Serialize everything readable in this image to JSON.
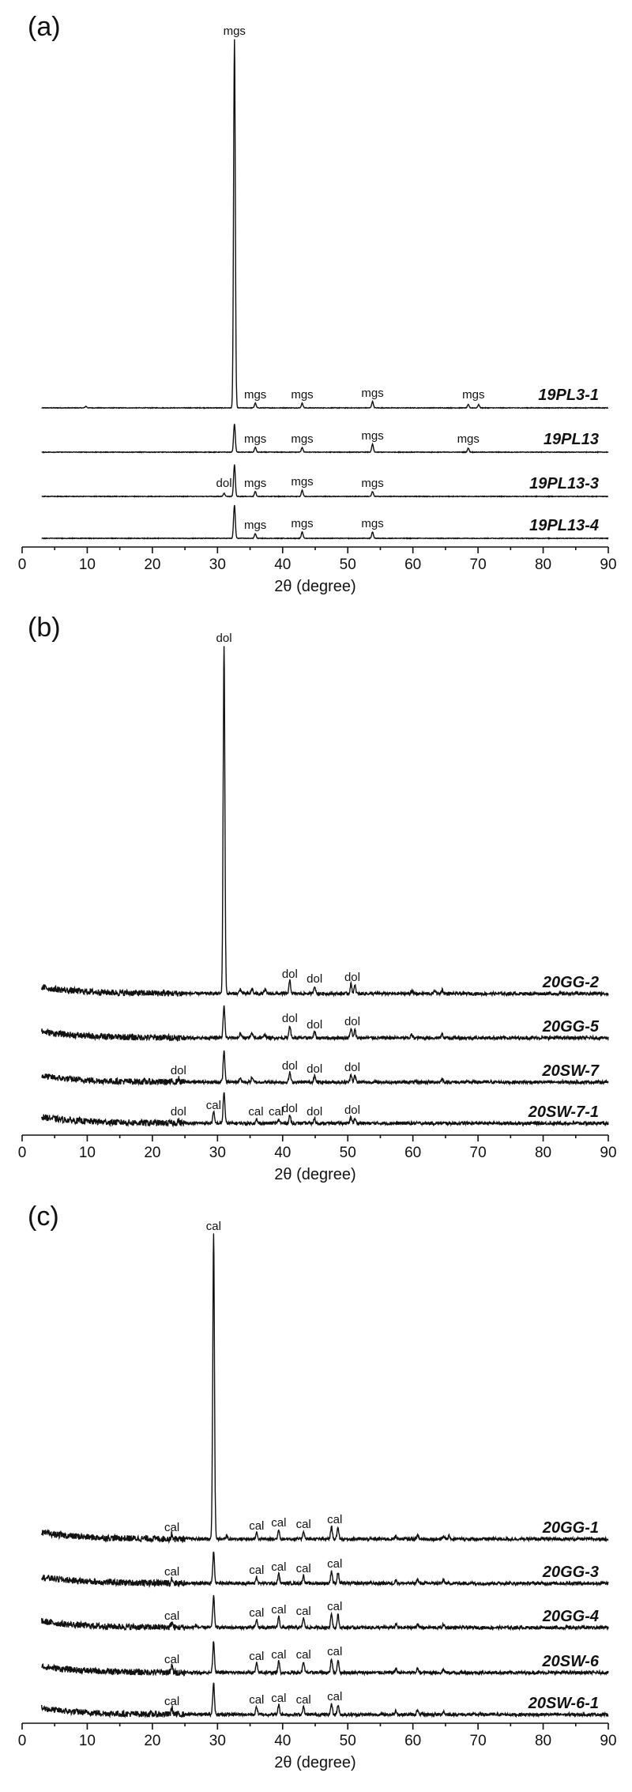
{
  "chart_data": [
    {
      "type": "line",
      "panel": "(a)",
      "xlabel": "2θ (degree)",
      "xlim": [
        0,
        90
      ],
      "xticks": [
        0,
        10,
        20,
        30,
        40,
        50,
        60,
        70,
        80,
        90
      ],
      "main_peak": {
        "x": 32.6,
        "label": "mgs"
      },
      "series": [
        {
          "name": "19PL3-1",
          "peaks": [
            [
              9.8,
              2
            ],
            [
              32.6,
              470
            ],
            [
              35.8,
              6
            ],
            [
              43.0,
              6
            ],
            [
              53.8,
              8
            ],
            [
              68.5,
              4
            ],
            [
              70.1,
              4
            ]
          ],
          "labels": [
            {
              "x": 35.8,
              "text": "mgs"
            },
            {
              "x": 43.0,
              "text": "mgs"
            },
            {
              "x": 53.8,
              "text": "mgs"
            },
            {
              "x": 69.3,
              "text": "mgs"
            }
          ]
        },
        {
          "name": "19PL13",
          "peaks": [
            [
              32.6,
              36
            ],
            [
              35.8,
              6
            ],
            [
              43.0,
              6
            ],
            [
              53.8,
              10
            ],
            [
              68.5,
              5
            ]
          ],
          "labels": [
            {
              "x": 35.8,
              "text": "mgs"
            },
            {
              "x": 43.0,
              "text": "mgs"
            },
            {
              "x": 53.8,
              "text": "mgs"
            },
            {
              "x": 68.5,
              "text": "mgs"
            }
          ]
        },
        {
          "name": "19PL13-3",
          "peaks": [
            [
              31.0,
              4
            ],
            [
              32.6,
              40
            ],
            [
              35.8,
              6
            ],
            [
              43.0,
              8
            ],
            [
              53.8,
              6
            ]
          ],
          "labels": [
            {
              "x": 31.0,
              "text": "dol"
            },
            {
              "x": 35.8,
              "text": "mgs"
            },
            {
              "x": 43.0,
              "text": "mgs"
            },
            {
              "x": 53.8,
              "text": "mgs"
            }
          ]
        },
        {
          "name": "19PL13-4",
          "peaks": [
            [
              32.6,
              42
            ],
            [
              35.8,
              6
            ],
            [
              43.0,
              8
            ],
            [
              53.8,
              8
            ]
          ],
          "labels": [
            {
              "x": 35.8,
              "text": "mgs"
            },
            {
              "x": 43.0,
              "text": "mgs"
            },
            {
              "x": 53.8,
              "text": "mgs"
            }
          ]
        }
      ]
    },
    {
      "type": "line",
      "panel": "(b)",
      "xlabel": "2θ (degree)",
      "xlim": [
        0,
        90
      ],
      "xticks": [
        0,
        10,
        20,
        30,
        40,
        50,
        60,
        70,
        80,
        90
      ],
      "main_peak": {
        "x": 31.0,
        "label": "dol"
      },
      "series": [
        {
          "name": "20GG-2",
          "peaks": [
            [
              31.0,
              410
            ],
            [
              33.5,
              6
            ],
            [
              35.3,
              6
            ],
            [
              37.3,
              5
            ],
            [
              41.1,
              16
            ],
            [
              44.9,
              10
            ],
            [
              50.5,
              12
            ],
            [
              51.1,
              10
            ],
            [
              59.8,
              4
            ],
            [
              63.4,
              4
            ],
            [
              64.5,
              5
            ]
          ],
          "labels": [
            {
              "x": 41.1,
              "text": "dol"
            },
            {
              "x": 44.9,
              "text": "dol"
            },
            {
              "x": 50.7,
              "text": "dol"
            }
          ]
        },
        {
          "name": "20GG-5",
          "peaks": [
            [
              31.0,
              40
            ],
            [
              33.5,
              6
            ],
            [
              35.3,
              6
            ],
            [
              37.3,
              5
            ],
            [
              41.1,
              16
            ],
            [
              44.9,
              8
            ],
            [
              50.5,
              12
            ],
            [
              51.1,
              10
            ],
            [
              59.8,
              4
            ],
            [
              64.5,
              5
            ]
          ],
          "labels": [
            {
              "x": 41.1,
              "text": "dol"
            },
            {
              "x": 44.9,
              "text": "dol"
            },
            {
              "x": 50.7,
              "text": "dol"
            }
          ]
        },
        {
          "name": "20SW-7",
          "peaks": [
            [
              24.0,
              4
            ],
            [
              31.0,
              40
            ],
            [
              33.5,
              6
            ],
            [
              35.3,
              6
            ],
            [
              41.1,
              12
            ],
            [
              44.9,
              8
            ],
            [
              50.5,
              10
            ],
            [
              51.1,
              8
            ],
            [
              64.5,
              4
            ]
          ],
          "labels": [
            {
              "x": 24.0,
              "text": "dol"
            },
            {
              "x": 41.1,
              "text": "dol"
            },
            {
              "x": 44.9,
              "text": "dol"
            },
            {
              "x": 50.7,
              "text": "dol"
            }
          ]
        },
        {
          "name": "20SW-7-1",
          "peaks": [
            [
              24.0,
              3
            ],
            [
              29.4,
              14
            ],
            [
              31.0,
              40
            ],
            [
              36.0,
              4
            ],
            [
              39.4,
              5
            ],
            [
              41.1,
              10
            ],
            [
              44.9,
              6
            ],
            [
              50.5,
              8
            ],
            [
              51.1,
              6
            ]
          ],
          "labels": [
            {
              "x": 24.0,
              "text": "dol"
            },
            {
              "x": 29.4,
              "text": "cal"
            },
            {
              "x": 35.9,
              "text": "cal"
            },
            {
              "x": 39.0,
              "text": "cal"
            },
            {
              "x": 41.1,
              "text": "dol"
            },
            {
              "x": 44.9,
              "text": "dol"
            },
            {
              "x": 50.7,
              "text": "dol"
            }
          ]
        }
      ]
    },
    {
      "type": "line",
      "panel": "(c)",
      "xlabel": "2θ (degree)",
      "xlim": [
        0,
        90
      ],
      "xticks": [
        0,
        10,
        20,
        30,
        40,
        50,
        60,
        70,
        80,
        90
      ],
      "main_peak": {
        "x": 29.4,
        "label": "cal"
      },
      "series": [
        {
          "name": "20GG-1",
          "peaks": [
            [
              23.0,
              6
            ],
            [
              29.4,
              430
            ],
            [
              31.4,
              4
            ],
            [
              36.0,
              8
            ],
            [
              39.4,
              12
            ],
            [
              43.2,
              10
            ],
            [
              47.5,
              16
            ],
            [
              48.5,
              14
            ],
            [
              57.4,
              4
            ],
            [
              60.7,
              5
            ],
            [
              64.7,
              4
            ],
            [
              65.6,
              4
            ]
          ],
          "labels": [
            {
              "x": 23.0,
              "text": "cal"
            },
            {
              "x": 36.0,
              "text": "cal"
            },
            {
              "x": 39.4,
              "text": "cal"
            },
            {
              "x": 43.2,
              "text": "cal"
            },
            {
              "x": 48.0,
              "text": "cal"
            }
          ]
        },
        {
          "name": "20GG-3",
          "peaks": [
            [
              23.0,
              6
            ],
            [
              29.4,
              40
            ],
            [
              36.0,
              8
            ],
            [
              39.4,
              12
            ],
            [
              43.2,
              10
            ],
            [
              47.5,
              16
            ],
            [
              48.5,
              14
            ],
            [
              57.4,
              4
            ],
            [
              60.7,
              5
            ],
            [
              64.7,
              4
            ]
          ],
          "labels": [
            {
              "x": 23.0,
              "text": "cal"
            },
            {
              "x": 36.0,
              "text": "cal"
            },
            {
              "x": 39.4,
              "text": "cal"
            },
            {
              "x": 43.2,
              "text": "cal"
            },
            {
              "x": 48.0,
              "text": "cal"
            }
          ]
        },
        {
          "name": "20GG-4",
          "peaks": [
            [
              23.0,
              6
            ],
            [
              26.7,
              3
            ],
            [
              29.4,
              40
            ],
            [
              36.0,
              10
            ],
            [
              39.4,
              14
            ],
            [
              43.2,
              12
            ],
            [
              47.5,
              18
            ],
            [
              48.5,
              16
            ],
            [
              57.4,
              4
            ],
            [
              60.7,
              5
            ],
            [
              64.7,
              4
            ]
          ],
          "labels": [
            {
              "x": 23.0,
              "text": "cal"
            },
            {
              "x": 36.0,
              "text": "cal"
            },
            {
              "x": 39.4,
              "text": "cal"
            },
            {
              "x": 43.2,
              "text": "cal"
            },
            {
              "x": 48.0,
              "text": "cal"
            }
          ]
        },
        {
          "name": "20SW-6",
          "peaks": [
            [
              23.0,
              8
            ],
            [
              29.4,
              40
            ],
            [
              36.0,
              12
            ],
            [
              39.4,
              14
            ],
            [
              43.2,
              14
            ],
            [
              47.5,
              18
            ],
            [
              48.5,
              16
            ],
            [
              57.4,
              5
            ],
            [
              60.7,
              5
            ],
            [
              64.7,
              4
            ]
          ],
          "labels": [
            {
              "x": 23.0,
              "text": "cal"
            },
            {
              "x": 36.0,
              "text": "cal"
            },
            {
              "x": 39.4,
              "text": "cal"
            },
            {
              "x": 43.2,
              "text": "cal"
            },
            {
              "x": 48.0,
              "text": "cal"
            }
          ]
        },
        {
          "name": "20SW-6-1",
          "peaks": [
            [
              23.0,
              8
            ],
            [
              29.4,
              40
            ],
            [
              36.0,
              10
            ],
            [
              39.4,
              12
            ],
            [
              43.2,
              10
            ],
            [
              47.5,
              14
            ],
            [
              48.5,
              12
            ],
            [
              57.4,
              5
            ],
            [
              60.7,
              5
            ],
            [
              64.7,
              4
            ]
          ],
          "labels": [
            {
              "x": 23.0,
              "text": "cal"
            },
            {
              "x": 36.0,
              "text": "cal"
            },
            {
              "x": 39.4,
              "text": "cal"
            },
            {
              "x": 43.2,
              "text": "cal"
            },
            {
              "x": 48.0,
              "text": "cal"
            }
          ]
        }
      ]
    }
  ]
}
